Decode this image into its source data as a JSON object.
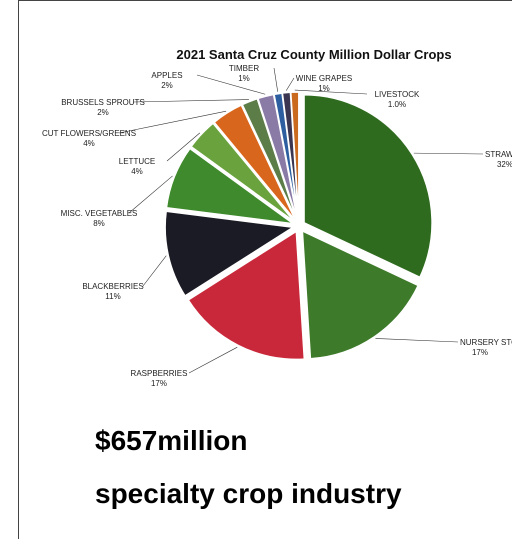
{
  "chart_data": {
    "type": "pie",
    "title": "2021 Santa Cruz County Million Dollar Crops",
    "slices": [
      {
        "label": "STRAWBERRIES",
        "percent_label": "32%",
        "value": 32,
        "color": "#2f6b1e"
      },
      {
        "label": "NURSERY STOCK",
        "percent_label": "17%",
        "value": 17,
        "color": "#3d7a2a"
      },
      {
        "label": "RASPBERRIES",
        "percent_label": "17%",
        "value": 17,
        "color": "#c8283a"
      },
      {
        "label": "BLACKBERRIES",
        "percent_label": "11%",
        "value": 11,
        "color": "#1b1b26"
      },
      {
        "label": "MISC. VEGETABLES",
        "percent_label": "8%",
        "value": 8,
        "color": "#3f8a2c"
      },
      {
        "label": "LETTUCE",
        "percent_label": "4%",
        "value": 4,
        "color": "#6aa33e"
      },
      {
        "label": "CUT FLOWERS/GREENS",
        "percent_label": "4%",
        "value": 4,
        "color": "#d9661d"
      },
      {
        "label": "BRUSSELS SPROUTS",
        "percent_label": "2%",
        "value": 2,
        "color": "#5c7d47"
      },
      {
        "label": "APPLES",
        "percent_label": "2%",
        "value": 2,
        "color": "#8a7aa6"
      },
      {
        "label": "TIMBER",
        "percent_label": "1%",
        "value": 1,
        "color": "#2d5fa0"
      },
      {
        "label": "WINE GRAPES",
        "percent_label": "1%",
        "value": 1,
        "color": "#3a3550"
      },
      {
        "label": "LIVESTOCK",
        "percent_label": "1.0%",
        "value": 1,
        "color": "#c96a1e"
      }
    ]
  },
  "headline": {
    "amount": "$657million",
    "industry": "specialty crop industry"
  }
}
